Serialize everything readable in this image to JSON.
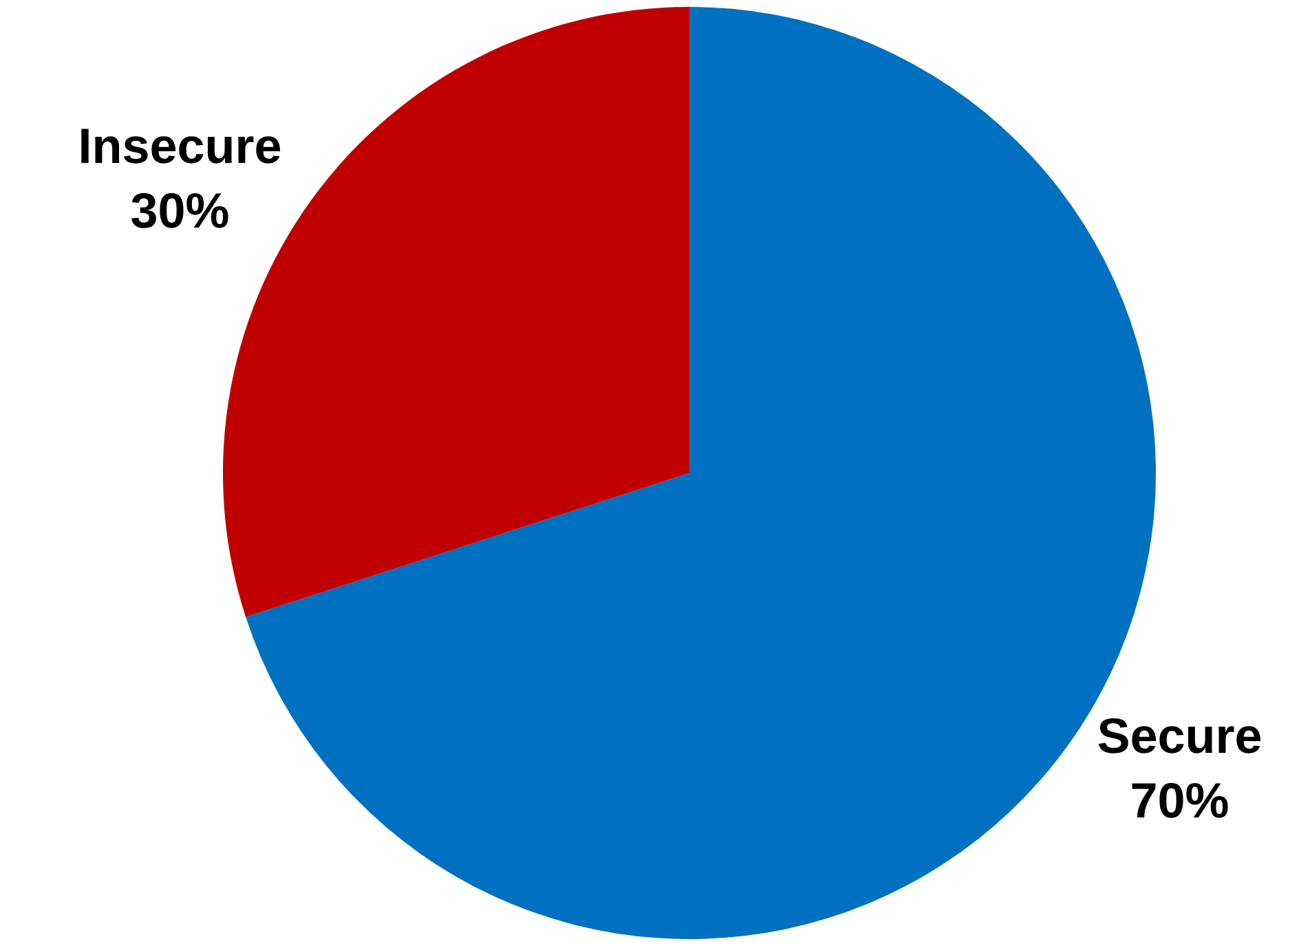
{
  "chart_data": {
    "type": "pie",
    "categories": [
      "Secure",
      "Insecure"
    ],
    "values": [
      70,
      30
    ],
    "colors": [
      "#0070c0",
      "#c00000"
    ],
    "value_labels": [
      "70%",
      "30%"
    ],
    "legend": false
  }
}
